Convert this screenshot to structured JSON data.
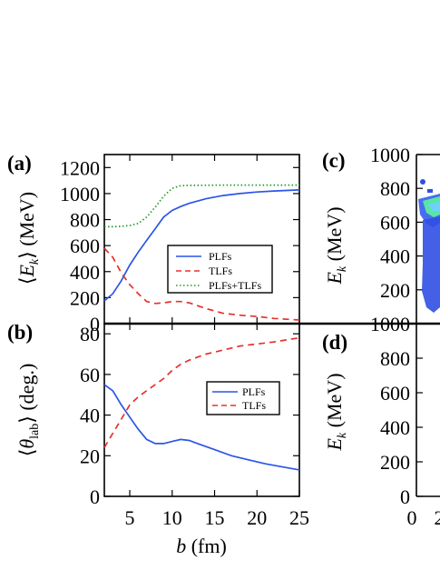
{
  "chart_data": [
    {
      "panel": "(a)",
      "type": "line",
      "ylabel": "⟨E_k⟩ (MeV)",
      "xlabel": "",
      "xlim": [
        2,
        25
      ],
      "ylim": [
        0,
        1300
      ],
      "xticks": [
        5,
        10,
        15,
        20,
        25
      ],
      "yticks": [
        0,
        200,
        400,
        600,
        800,
        1000,
        1200
      ],
      "legend": "center-right",
      "series": [
        {
          "name": "PLFs",
          "color": "#2b55e6",
          "dash": "solid",
          "x": [
            2,
            3,
            4,
            5,
            6,
            7,
            8,
            9,
            10,
            11,
            12,
            14,
            16,
            18,
            20,
            22,
            25
          ],
          "y": [
            175,
            230,
            330,
            450,
            550,
            640,
            730,
            820,
            870,
            900,
            925,
            960,
            985,
            1000,
            1012,
            1020,
            1028
          ]
        },
        {
          "name": "TLFs",
          "color": "#e8312e",
          "dash": "dashed",
          "x": [
            2,
            3,
            4,
            5,
            6,
            7,
            8,
            9,
            10,
            11,
            12,
            14,
            16,
            18,
            20,
            22,
            25
          ],
          "y": [
            580,
            510,
            390,
            300,
            230,
            170,
            155,
            160,
            170,
            170,
            160,
            115,
            80,
            65,
            55,
            40,
            28
          ]
        },
        {
          "name": "PLFs+TLFs",
          "color": "#1f9b2b",
          "dash": "dotted",
          "x": [
            2,
            3,
            4,
            5,
            6,
            7,
            8,
            9,
            10,
            11,
            12,
            14,
            16,
            18,
            20,
            22,
            25
          ],
          "y": [
            745,
            745,
            748,
            755,
            770,
            820,
            895,
            980,
            1040,
            1060,
            1063,
            1064,
            1065,
            1065,
            1065,
            1065,
            1065
          ]
        }
      ]
    },
    {
      "panel": "(b)",
      "type": "line",
      "ylabel": "⟨θ_lab⟩ (deg.)",
      "xlabel": "b (fm)",
      "xlim": [
        2,
        25
      ],
      "ylim": [
        0,
        85
      ],
      "xticks": [
        5,
        10,
        15,
        20,
        25
      ],
      "yticks": [
        0,
        20,
        40,
        60,
        80
      ],
      "legend": "top-right",
      "series": [
        {
          "name": "PLFs",
          "color": "#2b55e6",
          "dash": "solid",
          "x": [
            2,
            3,
            4,
            5,
            6,
            7,
            8,
            9,
            10,
            11,
            12,
            13,
            15,
            17,
            19,
            21,
            23,
            25
          ],
          "y": [
            55,
            52,
            45,
            39,
            33,
            28,
            26,
            26,
            27,
            28,
            27.5,
            26,
            23,
            20,
            18,
            16,
            14.5,
            13
          ]
        },
        {
          "name": "TLFs",
          "color": "#e8312e",
          "dash": "dashed",
          "x": [
            2,
            3,
            4,
            5,
            6,
            7,
            8,
            9,
            10,
            11,
            12,
            14,
            16,
            18,
            20,
            22,
            25
          ],
          "y": [
            24,
            31,
            38,
            45,
            49,
            52,
            55,
            58,
            62,
            65,
            67,
            70,
            72,
            74,
            75,
            76,
            78
          ]
        }
      ]
    },
    {
      "panel": "(c)",
      "type": "heatmap",
      "ylabel": "E_k (MeV)",
      "ylim": [
        0,
        1000
      ],
      "yticks": [
        200,
        400,
        600,
        800,
        1000
      ],
      "note": "partially visible, cropped at right edge"
    },
    {
      "panel": "(d)",
      "type": "heatmap",
      "ylabel": "E_k (MeV)",
      "ylim": [
        0,
        1000
      ],
      "yticks": [
        0,
        200,
        400,
        600,
        800,
        1000
      ],
      "xticks_visible": [
        "0",
        "2"
      ],
      "note": "partially visible, cropped at right edge"
    }
  ],
  "labels": {
    "panel_a": "(a)",
    "panel_b": "(b)",
    "panel_c": "(c)",
    "panel_d": "(d)",
    "ylabel_a_pre": "⟨",
    "ylabel_a_main": "E",
    "ylabel_a_sub": "k",
    "ylabel_a_post": "⟩ (MeV)",
    "ylabel_b_pre": "⟨",
    "ylabel_b_main": "θ",
    "ylabel_b_sub": "lab",
    "ylabel_b_post": "⟩ (deg.)",
    "ylabel_c_main": "E",
    "ylabel_c_sub": "k",
    "ylabel_c_post": " (MeV)",
    "ylabel_d_main": "E",
    "ylabel_d_sub": "k",
    "ylabel_d_post": " (MeV)",
    "xlabel_main": "b",
    "xlabel_post": " (fm)",
    "c_ticks": [
      "1000",
      "800",
      "600",
      "400",
      "200"
    ],
    "d_ticks": [
      "1000",
      "800",
      "600",
      "400",
      "200",
      "0"
    ],
    "d_xticks": [
      "0",
      "2"
    ]
  }
}
